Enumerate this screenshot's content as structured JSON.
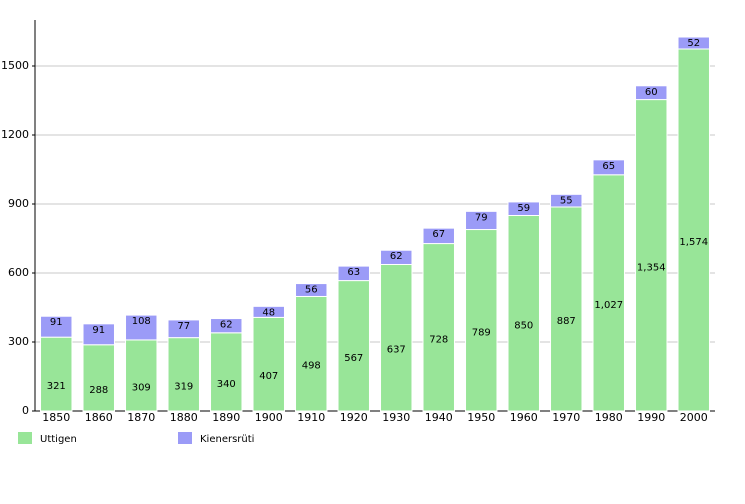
{
  "chart_data": {
    "type": "stacked-bar",
    "categories": [
      "1850",
      "1860",
      "1870",
      "1880",
      "1890",
      "1900",
      "1910",
      "1920",
      "1930",
      "1940",
      "1950",
      "1960",
      "1970",
      "1980",
      "1990",
      "2000"
    ],
    "series": [
      {
        "name": "Uttigen",
        "color": "#98e598",
        "values": [
          321,
          288,
          309,
          319,
          340,
          407,
          498,
          567,
          637,
          728,
          789,
          850,
          887,
          1027,
          1354,
          1574
        ],
        "value_labels": [
          "321",
          "288",
          "309",
          "319",
          "340",
          "407",
          "498",
          "567",
          "637",
          "728",
          "789",
          "850",
          "887",
          "1,027",
          "1,354",
          "1,574"
        ]
      },
      {
        "name": "Kienersrüti",
        "color": "#9b9bf7",
        "values": [
          91,
          91,
          108,
          77,
          62,
          48,
          56,
          63,
          62,
          67,
          79,
          59,
          55,
          65,
          60,
          52
        ]
      }
    ],
    "ylim": [
      0,
      1700
    ],
    "yticks": [
      0,
      300,
      600,
      900,
      1200,
      1500
    ],
    "grid": true,
    "legend": "bottom"
  }
}
